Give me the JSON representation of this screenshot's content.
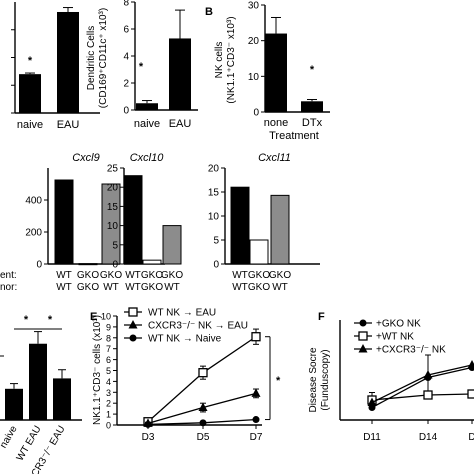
{
  "figure": {
    "panel_labels": {
      "B": "B",
      "E": "E",
      "F": "F"
    },
    "left_table": {
      "row1": "ent:",
      "row2": "nor:"
    }
  },
  "chart_data": [
    {
      "id": "p1",
      "type": "bar",
      "categories": [
        "naive",
        "EAU"
      ],
      "values": [
        7,
        18.2
      ],
      "errors": [
        0.2,
        0.8
      ],
      "yticks": [
        0,
        5,
        10,
        15
      ],
      "ylim": [
        0,
        20
      ],
      "ylabel": "",
      "xlabel": "",
      "significance": "*"
    },
    {
      "id": "p2",
      "type": "bar",
      "categories": [
        "naive",
        "EAU"
      ],
      "values": [
        0.5,
        5.3
      ],
      "errors": [
        0.2,
        2.1
      ],
      "yticks": [
        0,
        2,
        4,
        6,
        8
      ],
      "ylim": [
        0,
        8
      ],
      "ylabel": "Dendritic Cells\n(CD169⁺CD11c⁺ x10³)",
      "significance": "*"
    },
    {
      "id": "p3",
      "type": "bar",
      "categories": [
        "none",
        "DTx"
      ],
      "values": [
        22,
        3
      ],
      "errors": [
        4.5,
        0.5
      ],
      "yticks": [
        0,
        10,
        20,
        30
      ],
      "ylim": [
        0,
        30
      ],
      "ylabel": "NK cells\n(NK1.1⁺CD3⁻ x10³)",
      "xlabel": "Treatment",
      "significance": "*"
    },
    {
      "id": "p4",
      "type": "bar",
      "title": "Cxcl9",
      "categories": [
        "WT|WT",
        "GKO|GKO",
        "GKO|WT"
      ],
      "values": [
        525,
        2,
        500
      ],
      "yticks": [
        0,
        200,
        400
      ],
      "ylim": [
        0,
        600
      ],
      "colors": [
        "#000000",
        "#ffffff",
        "#8c8c8c"
      ]
    },
    {
      "id": "p5",
      "type": "bar",
      "title": "Cxcl10",
      "categories": [
        "WT|WT",
        "GKO|GKO",
        "GKO|WT"
      ],
      "values": [
        23,
        1,
        10
      ],
      "yticks": [
        0,
        5,
        10,
        15,
        20,
        25
      ],
      "ylim": [
        0,
        25
      ],
      "colors": [
        "#000000",
        "#ffffff",
        "#8c8c8c"
      ]
    },
    {
      "id": "p6",
      "type": "bar",
      "title": "Cxcl11",
      "categories": [
        "WT|WT",
        "GKO|GKO",
        "GKO|WT"
      ],
      "values": [
        16,
        5,
        14.3
      ],
      "yticks": [
        0,
        5,
        10,
        15,
        20
      ],
      "ylim": [
        0,
        20
      ],
      "colors": [
        "#000000",
        "#ffffff",
        "#8c8c8c"
      ]
    },
    {
      "id": "p7",
      "type": "bar",
      "categories": [
        "naive",
        "WT EAU",
        "CXCR3⁻/⁻ EAU"
      ],
      "values": [
        9,
        22,
        12
      ],
      "errors": [
        1.5,
        3.5,
        2.5
      ],
      "ylim": [
        0,
        30
      ],
      "significance": [
        "*",
        "*"
      ]
    },
    {
      "id": "p8",
      "type": "line",
      "x": [
        "D3",
        "D5",
        "D7"
      ],
      "ylim": [
        0,
        10
      ],
      "yticks": [
        0,
        1,
        2,
        3,
        4,
        5,
        6,
        7,
        8,
        9,
        10
      ],
      "ylabel": "NK1.1⁺CD3⁻ cells (x10³)",
      "series": [
        {
          "name": "WT NK → EAU",
          "marker": "square-open",
          "values": [
            0.3,
            4.8,
            8.1
          ],
          "errors": [
            0.2,
            0.6,
            0.7
          ]
        },
        {
          "name": "CXCR3⁻/⁻ NK → EAU",
          "marker": "triangle",
          "values": [
            0.15,
            1.6,
            2.9
          ],
          "errors": [
            0.1,
            0.4,
            0.4
          ]
        },
        {
          "name": "WT NK → Naive",
          "marker": "circle",
          "values": [
            0.05,
            0.2,
            0.5
          ],
          "errors": [
            0,
            0.05,
            0.1
          ]
        }
      ],
      "significance": "*"
    },
    {
      "id": "p9",
      "type": "line",
      "x": [
        "D11",
        "D14",
        "D"
      ],
      "ylim": [
        0,
        2
      ],
      "ylabel": "Disease Socre\n(Funduscopy)",
      "series": [
        {
          "name": "+GKO NK",
          "marker": "circle",
          "values": [
            0.25,
            0.85,
            1.05
          ]
        },
        {
          "name": "+WT NK",
          "marker": "square-open",
          "values": [
            0.4,
            0.5,
            0.52
          ]
        },
        {
          "name": "+CXCR3⁻/⁻ NK",
          "marker": "triangle",
          "values": [
            0.35,
            0.9,
            1.1
          ]
        }
      ]
    }
  ]
}
